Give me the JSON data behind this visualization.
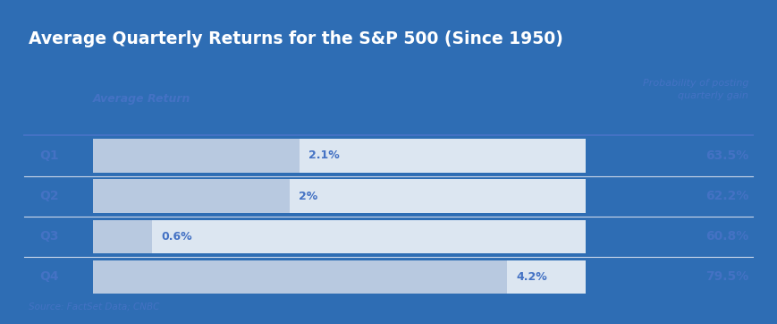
{
  "title": "Average Quarterly Returns for the S&P 500 (Since 1950)",
  "title_bg": "#1a3a5c",
  "title_color": "#ffffff",
  "outer_border_color": "#2e6db4",
  "inner_bg": "#ffffff",
  "col_left_label": "Average Return",
  "col_right_label": "Probability of posting\nquarterly gain",
  "col_label_color": "#4472c4",
  "source_text": "Source: FactSet Data; CNBC",
  "quarters": [
    "Q1",
    "Q2",
    "Q3",
    "Q4"
  ],
  "returns": [
    2.1,
    2.0,
    0.6,
    4.2
  ],
  "return_labels": [
    "2.1%",
    "2%",
    "0.6%",
    "4.2%"
  ],
  "probabilities": [
    "63.5%",
    "62.2%",
    "60.8%",
    "79.5%"
  ],
  "max_return": 5.0,
  "bar_bg_color": "#dce6f1",
  "bar_fill_color": "#b8c9e0",
  "bar_label_color": "#4472c4",
  "quarter_label_color": "#4472c4",
  "prob_color": "#4472c4",
  "divider_color": "#4472c4",
  "row_divider_color": "#cdd8ea"
}
